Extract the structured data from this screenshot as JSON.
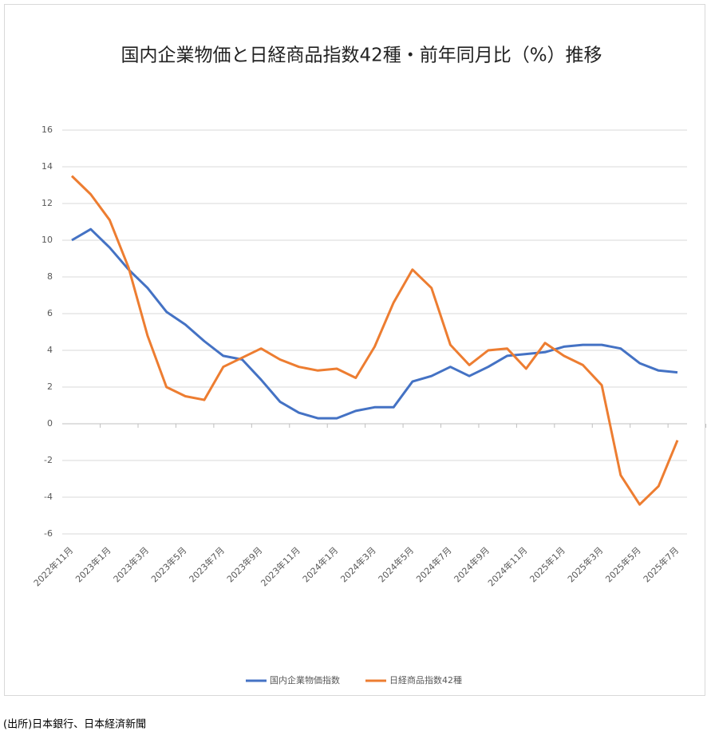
{
  "chart_data": {
    "type": "line",
    "title": "国内企業物価と日経商品指数42種・前年同月比（%）推移",
    "categories": [
      "2022年11月",
      null,
      "2023年1月",
      null,
      "2023年3月",
      null,
      "2023年5月",
      null,
      "2023年7月",
      null,
      "2023年9月",
      null,
      "2023年11月",
      null,
      "2024年1月",
      null,
      "2024年3月",
      null,
      "2024年5月",
      null,
      "2024年7月",
      null,
      "2024年9月",
      null,
      "2024年11月",
      null,
      "2025年1月",
      null,
      "2025年3月",
      null,
      "2025年5月",
      null,
      "2025年7月"
    ],
    "series": [
      {
        "name": "国内企業物価指数",
        "color": "#4472c4",
        "values": [
          10.0,
          10.6,
          9.6,
          8.4,
          7.4,
          6.1,
          5.4,
          4.5,
          3.7,
          3.5,
          2.4,
          1.2,
          0.6,
          0.3,
          0.3,
          0.7,
          0.9,
          0.9,
          2.3,
          2.6,
          3.1,
          2.6,
          3.1,
          3.7,
          3.8,
          3.9,
          4.2,
          4.3,
          4.3,
          4.1,
          3.3,
          2.9,
          2.8
        ]
      },
      {
        "name": "日経商品指数42種",
        "color": "#ed7d31",
        "values": [
          13.5,
          12.5,
          11.1,
          8.5,
          4.8,
          2.0,
          1.5,
          1.3,
          3.1,
          3.6,
          4.1,
          3.5,
          3.1,
          2.9,
          3.0,
          2.5,
          4.2,
          6.6,
          8.4,
          7.4,
          4.3,
          3.2,
          4.0,
          4.1,
          3.0,
          4.4,
          3.7,
          3.2,
          2.1,
          -2.8,
          -4.4,
          -3.4,
          -0.9
        ]
      }
    ],
    "ylim": [
      -6,
      16
    ],
    "yticks": [
      -6,
      -4,
      -2,
      0,
      2,
      4,
      6,
      8,
      10,
      12,
      14,
      16
    ],
    "grid": true,
    "legend": "bottom",
    "note": "(出所)日本銀行、日本経済新聞"
  }
}
